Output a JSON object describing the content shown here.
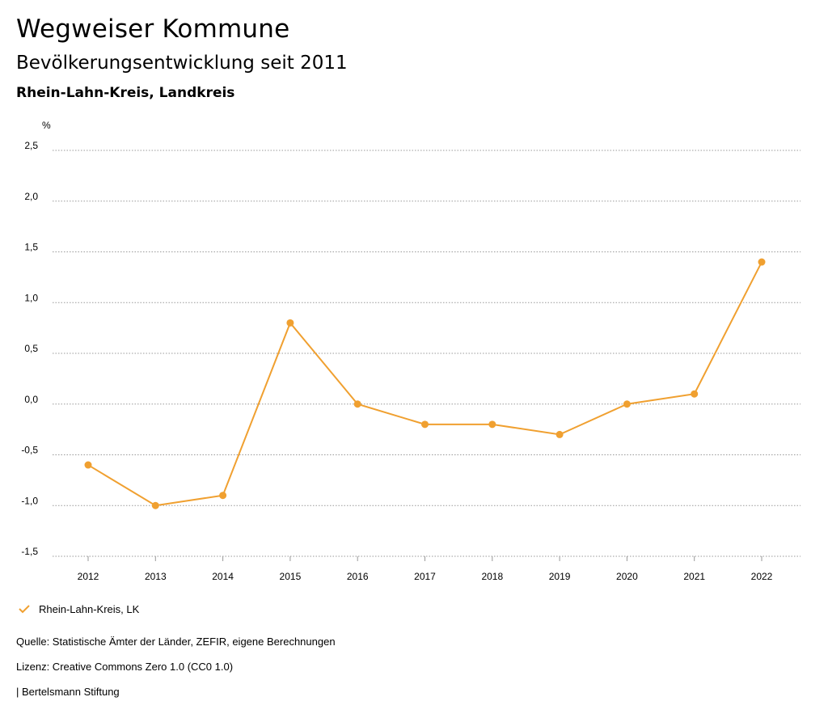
{
  "header": {
    "title": "Wegweiser Kommune",
    "subtitle": "Bevölkerungsentwicklung seit 2011",
    "region": "Rhein-Lahn-Kreis, Landkreis"
  },
  "chart_data": {
    "type": "line",
    "unit_label": "%",
    "x": [
      "2012",
      "2013",
      "2014",
      "2015",
      "2016",
      "2017",
      "2018",
      "2019",
      "2020",
      "2021",
      "2022"
    ],
    "series": [
      {
        "name": "Rhein-Lahn-Kreis, LK",
        "values": [
          -0.6,
          -1.0,
          -0.9,
          0.8,
          0.0,
          -0.2,
          -0.2,
          -0.3,
          0.0,
          0.1,
          1.4
        ]
      }
    ],
    "ylim": [
      -1.5,
      2.5
    ],
    "yticks": [
      2.5,
      2.0,
      1.5,
      1.0,
      0.5,
      0.0,
      -0.5,
      -1.0,
      -1.5
    ],
    "ytick_labels": [
      "2,5",
      "2,0",
      "1,5",
      "1,0",
      "0,5",
      "0,0",
      "-0,5",
      "-1,0",
      "-1,5"
    ],
    "grid": "dotted-horizontal",
    "legend": "bottom-left",
    "color": "#f0a030"
  },
  "legend": {
    "label": "Rhein-Lahn-Kreis, LK"
  },
  "footer": {
    "source": "Quelle: Statistische Ämter der Länder, ZEFIR, eigene Berechnungen",
    "license": "Lizenz: Creative Commons Zero 1.0 (CC0 1.0)",
    "publisher": "| Bertelsmann Stiftung"
  }
}
